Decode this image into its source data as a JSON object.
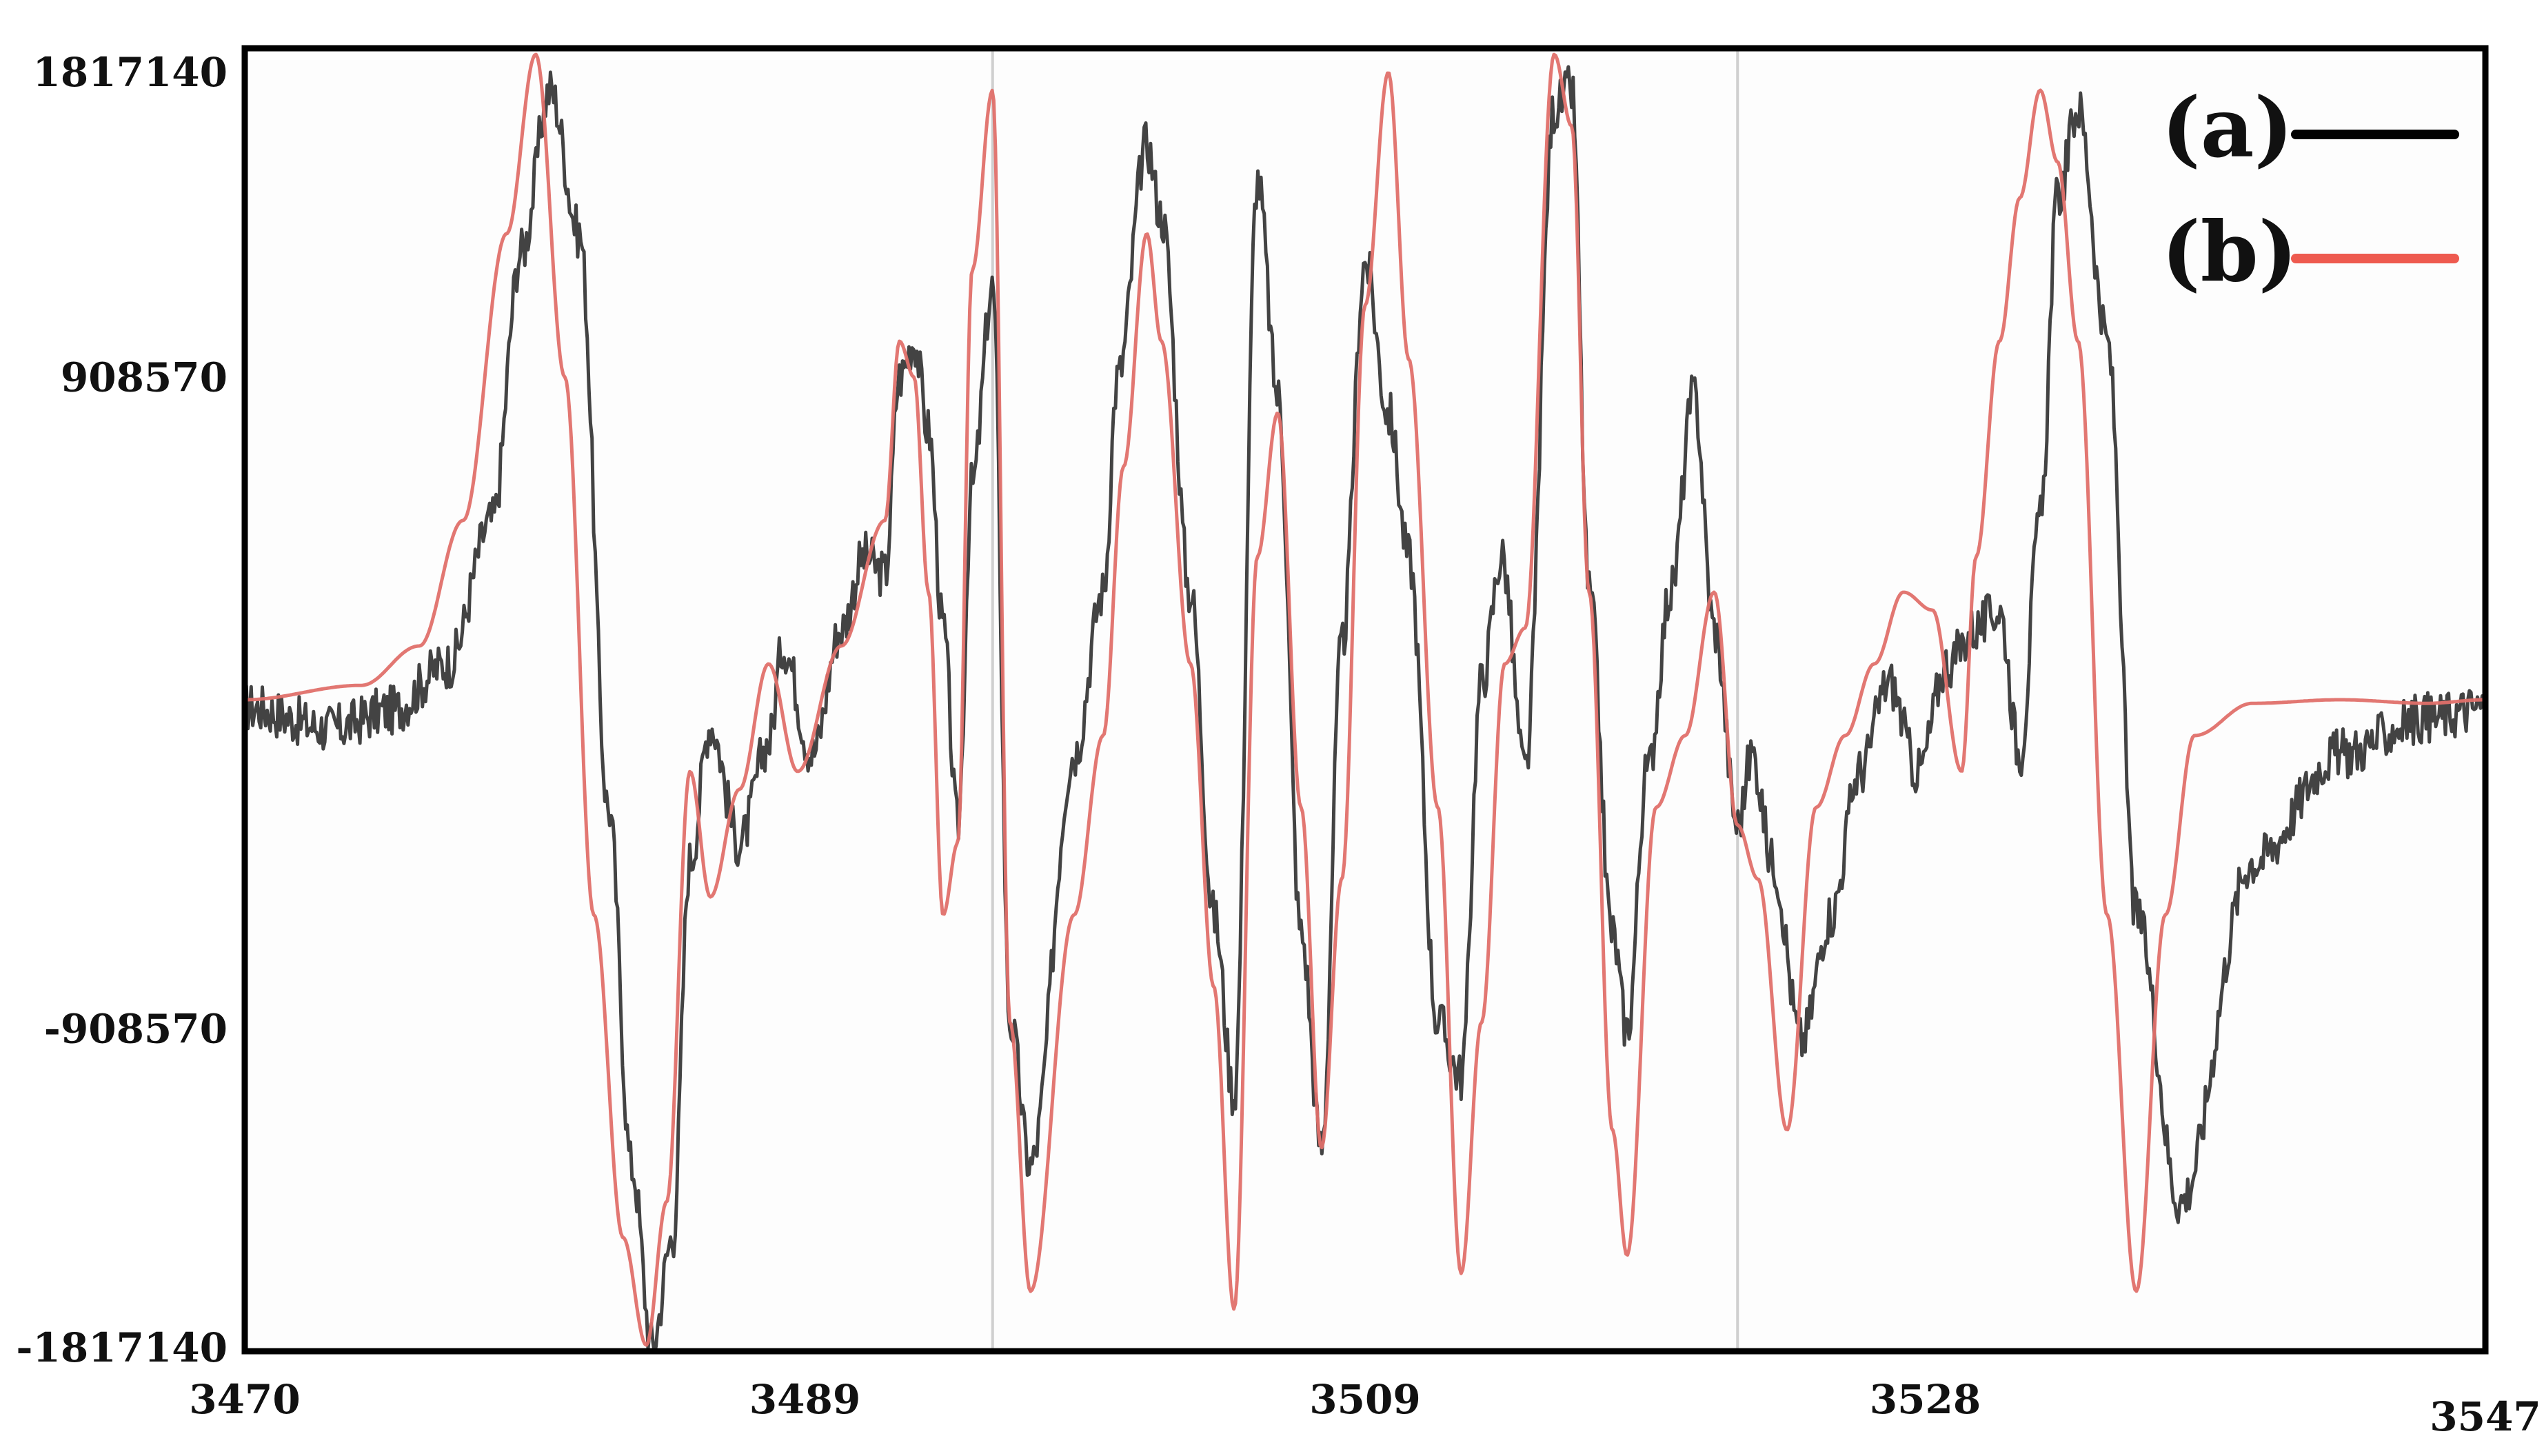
{
  "chart_data": {
    "type": "line",
    "title": "",
    "xlabel": "",
    "ylabel": "",
    "xlim": [
      3470,
      3547
    ],
    "ylim": [
      -1817140,
      1817140
    ],
    "x_ticks": [
      "3470",
      "3489",
      "3509",
      "3528",
      "3547"
    ],
    "y_ticks": [
      "1817140",
      "908570",
      "-908570",
      "-1817140"
    ],
    "grid": "vertical lines at 3495.7 and 3521.3",
    "legend": "top-right",
    "series": [
      {
        "name": "(a)",
        "color": "#222222",
        "x": [
          3470,
          3473,
          3475,
          3477,
          3478.5,
          3479.5,
          3480.5,
          3481.5,
          3482.5,
          3483.3,
          3484,
          3484.7,
          3485.3,
          3486,
          3487,
          3488,
          3488.5,
          3489.5,
          3490.5,
          3491.3,
          3492,
          3492.5,
          3493,
          3493.5,
          3494,
          3494.5,
          3495,
          3495.7,
          3496.3,
          3497,
          3498.5,
          3499.5,
          3500,
          3501,
          3501.5,
          3502.5,
          3503.3,
          3504,
          3504.8,
          3505.5,
          3506.3,
          3507,
          3507.7,
          3508.5,
          3509.3,
          3510,
          3511,
          3511.8,
          3512.5,
          3513.2,
          3514,
          3515,
          3515.6,
          3516.2,
          3517,
          3517.5,
          3518.2,
          3519,
          3519.8,
          3520.5,
          3521.3,
          3521.8,
          3522.5,
          3523.5,
          3524.5,
          3525.5,
          3526.5,
          3527.5,
          3528.5,
          3529.5,
          3530.3,
          3531,
          3531.7,
          3532.3,
          3533,
          3534,
          3535,
          3536.5,
          3539,
          3542,
          3545,
          3547
        ],
        "y": [
          -20000,
          -80000,
          -30000,
          100000,
          500000,
          1250000,
          1700000,
          1300000,
          -300000,
          -1300000,
          -1800000,
          -1500000,
          -450000,
          -70000,
          -400000,
          -120000,
          150000,
          -150000,
          200000,
          400000,
          350000,
          900000,
          1000000,
          750000,
          200000,
          -350000,
          600000,
          1150000,
          -900000,
          -1300000,
          -150000,
          300000,
          900000,
          1550000,
          1350000,
          300000,
          -600000,
          -1100000,
          1450000,
          850000,
          -650000,
          -1250000,
          150000,
          1220000,
          800000,
          400000,
          -900000,
          -1050000,
          50000,
          400000,
          -200000,
          1650000,
          1700000,
          300000,
          -650000,
          -920000,
          -200000,
          300000,
          850000,
          200000,
          -350000,
          -150000,
          -450000,
          -950000,
          -600000,
          -200000,
          50000,
          -200000,
          100000,
          200000,
          250000,
          -150000,
          500000,
          1400000,
          1650000,
          1000000,
          -600000,
          -1400000,
          -450000,
          -150000,
          -50000,
          -20000
        ]
      },
      {
        "name": "(b)",
        "color": "#e0706a",
        "x": [
          3470,
          3474,
          3476,
          3477.5,
          3479,
          3480,
          3481,
          3482,
          3483,
          3483.8,
          3484.5,
          3485.3,
          3486,
          3487,
          3488,
          3489,
          3490.5,
          3492,
          3492.5,
          3493,
          3493.5,
          3494,
          3494.5,
          3495,
          3495.7,
          3496.3,
          3497,
          3498.5,
          3499.5,
          3500.2,
          3501,
          3501.5,
          3502.5,
          3503.3,
          3504,
          3504.8,
          3505.5,
          3506.3,
          3507,
          3507.7,
          3508.5,
          3509.3,
          3510,
          3511,
          3511.8,
          3512.5,
          3513.3,
          3514,
          3515,
          3515.6,
          3516.2,
          3517,
          3517.5,
          3518.5,
          3519.5,
          3520.5,
          3521.3,
          3522,
          3523,
          3524,
          3525,
          3526,
          3527,
          3528,
          3529,
          3529.5,
          3530.3,
          3531,
          3531.7,
          3532.3,
          3533,
          3534,
          3535,
          3536,
          3537,
          3539,
          3542,
          3545,
          3547
        ],
        "y": [
          0,
          40000,
          150000,
          500000,
          1300000,
          1800000,
          900000,
          -600000,
          -1500000,
          -1800000,
          -1400000,
          -200000,
          -550000,
          -250000,
          100000,
          -200000,
          150000,
          500000,
          1000000,
          900000,
          300000,
          -600000,
          -400000,
          1200000,
          1700000,
          -900000,
          -1650000,
          -600000,
          -100000,
          650000,
          1300000,
          1000000,
          100000,
          -800000,
          -1700000,
          400000,
          800000,
          -300000,
          -1250000,
          -500000,
          1100000,
          1750000,
          950000,
          -300000,
          -1600000,
          -900000,
          100000,
          200000,
          1800000,
          1600000,
          300000,
          -1200000,
          -1550000,
          -300000,
          -100000,
          300000,
          -350000,
          -500000,
          -1200000,
          -300000,
          -100000,
          100000,
          300000,
          250000,
          -200000,
          400000,
          1000000,
          1400000,
          1700000,
          1500000,
          1000000,
          -600000,
          -1650000,
          -600000,
          -100000,
          -10000,
          0,
          -10000,
          0
        ]
      }
    ]
  }
}
